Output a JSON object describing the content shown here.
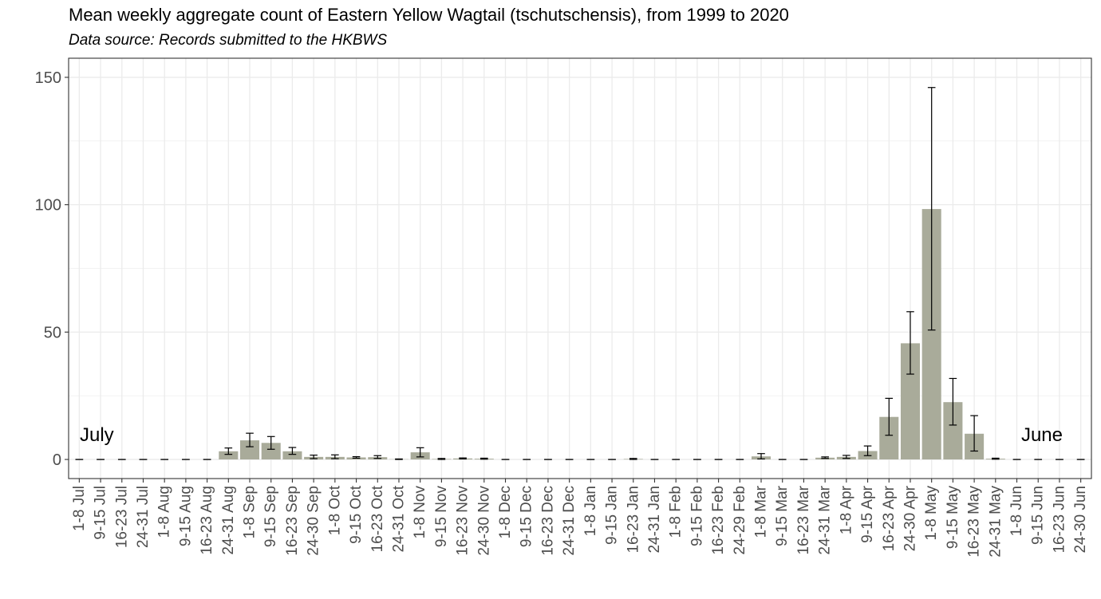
{
  "chart_data": {
    "type": "bar",
    "title": "Mean weekly aggregate count of Eastern Yellow Wagtail (tschutschensis), from 1999 to 2020",
    "subtitle": "Data source: Records submitted to the HKBWS",
    "xlabel": "",
    "ylabel": "",
    "ylim": [
      -7.5,
      157.5
    ],
    "yticks": [
      0,
      50,
      100,
      150
    ],
    "grid": true,
    "annotations": [
      "July",
      "June"
    ],
    "bar_color": "#a9ab9a",
    "categories": [
      "1-8 Jul",
      "9-15 Jul",
      "16-23 Jul",
      "24-31 Jul",
      "1-8 Aug",
      "9-15 Aug",
      "16-23 Aug",
      "24-31 Aug",
      "1-8 Sep",
      "9-15 Sep",
      "16-23 Sep",
      "24-30 Sep",
      "1-8 Oct",
      "9-15 Oct",
      "16-23 Oct",
      "24-31 Oct",
      "1-8 Nov",
      "9-15 Nov",
      "16-23 Nov",
      "24-30 Nov",
      "1-8 Dec",
      "9-15 Dec",
      "16-23 Dec",
      "24-31 Dec",
      "1-8 Jan",
      "9-15 Jan",
      "16-23 Jan",
      "24-31 Jan",
      "1-8 Feb",
      "9-15 Feb",
      "16-23 Feb",
      "24-29 Feb",
      "1-8 Mar",
      "9-15 Mar",
      "16-23 Mar",
      "24-31 Mar",
      "1-8 Apr",
      "9-15 Apr",
      "16-23 Apr",
      "24-30 Apr",
      "1-8 May",
      "9-15 May",
      "16-23 May",
      "24-31 May",
      "1-8 Jun",
      "9-15 Jun",
      "16-23 Jun",
      "24-30 Jun"
    ],
    "values": [
      0,
      0,
      0,
      0,
      0,
      0,
      0,
      3.2,
      7.5,
      6.5,
      3.2,
      1.0,
      1.0,
      0.8,
      0.9,
      0.1,
      2.8,
      0.2,
      0.4,
      0.3,
      0,
      0,
      0,
      0,
      0,
      0,
      0.2,
      0,
      0,
      0,
      0,
      0,
      1.2,
      0,
      0,
      0.7,
      1.0,
      3.3,
      16.7,
      45.6,
      98.3,
      22.5,
      10.1,
      0.3,
      0,
      0,
      0,
      0
    ],
    "error_low": [
      0,
      0,
      0,
      0,
      0,
      0,
      0,
      2.0,
      5.0,
      4.0,
      2.0,
      0.3,
      0.3,
      0.5,
      0.4,
      0,
      1.0,
      0,
      0.2,
      0.1,
      0,
      0,
      0,
      0,
      0,
      0,
      0,
      0,
      0,
      0,
      0,
      0,
      0.2,
      0,
      0,
      0.4,
      0.4,
      1.5,
      9.5,
      33.5,
      50.8,
      13.5,
      3.3,
      0.1,
      0,
      0,
      0,
      0
    ],
    "error_high": [
      0,
      0,
      0,
      0,
      0,
      0,
      0,
      4.5,
      10.3,
      9.0,
      4.7,
      1.7,
      1.8,
      1.1,
      1.5,
      0.2,
      4.6,
      0.4,
      0.6,
      0.5,
      0,
      0,
      0,
      0,
      0,
      0,
      0.4,
      0,
      0,
      0,
      0,
      0,
      2.3,
      0,
      0,
      1.0,
      1.6,
      5.3,
      24.0,
      58.0,
      146.0,
      31.8,
      17.2,
      0.5,
      0,
      0,
      0,
      0
    ]
  }
}
